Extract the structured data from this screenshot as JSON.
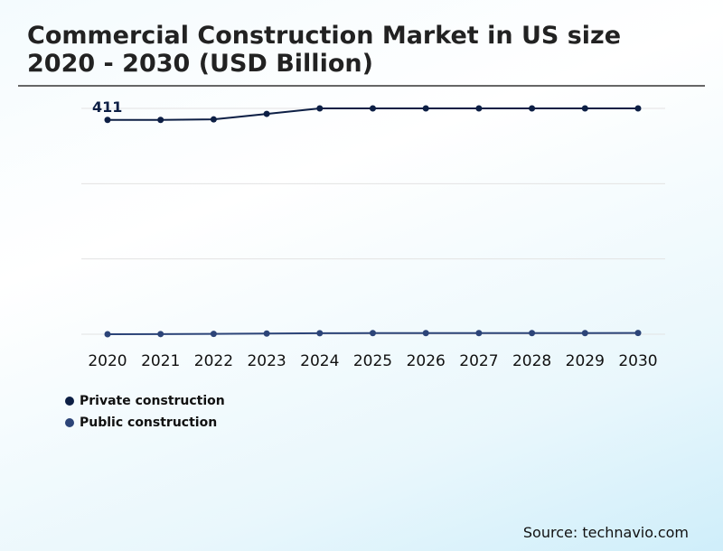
{
  "chart_data": {
    "type": "line",
    "title": "Commercial Construction Market in US size 2020 - 2030 (USD Billion)",
    "categories": [
      "2020",
      "2021",
      "2022",
      "2023",
      "2024",
      "2025",
      "2026",
      "2027",
      "2028",
      "2029",
      "2030"
    ],
    "series": [
      {
        "name": "Private construction",
        "color": "#0d1f45",
        "values": [
          390,
          390,
          391,
          401,
          411,
          411,
          411,
          411,
          411,
          411,
          411
        ]
      },
      {
        "name": "Public construction",
        "color": "#2c4478",
        "values": [
          0,
          0.3,
          0.6,
          1.2,
          1.8,
          2,
          2,
          2,
          2,
          2.1,
          2.2
        ]
      }
    ],
    "annotations": [
      {
        "text": "411"
      }
    ],
    "ylim": [
      0,
      411
    ],
    "grid": true,
    "legend": "bottom-left"
  },
  "source": "Source: technavio.com"
}
